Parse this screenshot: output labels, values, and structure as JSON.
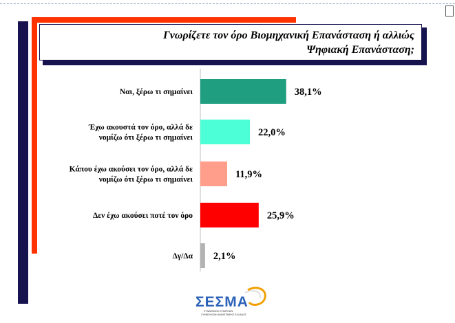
{
  "colors": {
    "navy": "#16134f",
    "accent_red": "#ff3300",
    "logo_blue": "#2b62b8"
  },
  "chart_data": {
    "type": "bar",
    "orientation": "horizontal",
    "title": "Γνωρίζετε τον όρο Βιομηχανική Επανάσταση ή αλλιώς Ψηφιακή Επανάσταση;",
    "unit": "%",
    "xlim": [
      0,
      40
    ],
    "grid": false,
    "legend": "none",
    "categories": [
      [
        "Ναι, ξέρω τι σημαίνει"
      ],
      [
        "Έχω ακουστά τον όρο, αλλά δε",
        "νομίζω ότι ξέρω τι σημαίνει"
      ],
      [
        "Κάπου έχω ακούσει τον όρο, αλλά δε",
        "νομίζω ότι ξέρω τι σημαίνει"
      ],
      [
        "Δεν έχω ακούσει ποτέ τον όρο"
      ],
      [
        "Δγ/Δα"
      ]
    ],
    "values": [
      38.1,
      22.0,
      11.9,
      25.9,
      2.1
    ],
    "value_labels": [
      "38,1%",
      "22,0%",
      "11,9%",
      "25,9%",
      "2,1%"
    ],
    "bar_colors": [
      "#1f9e80",
      "#4dffd6",
      "#ff9e8a",
      "#ff0000",
      "#b3b3b3"
    ]
  },
  "logo": {
    "text": "ΣΕΣΜΑ",
    "subtitle_line1": "ΣΥΝΔΕΣΜΟΣ ΕΤΑΙΡΕΙΩΝ",
    "subtitle_line2": "ΣΥΜΒΟΥΛΩΝ ΜΑΝΑΤΖΜΕΝΤ ΕΛΛΑΔΟΣ"
  }
}
